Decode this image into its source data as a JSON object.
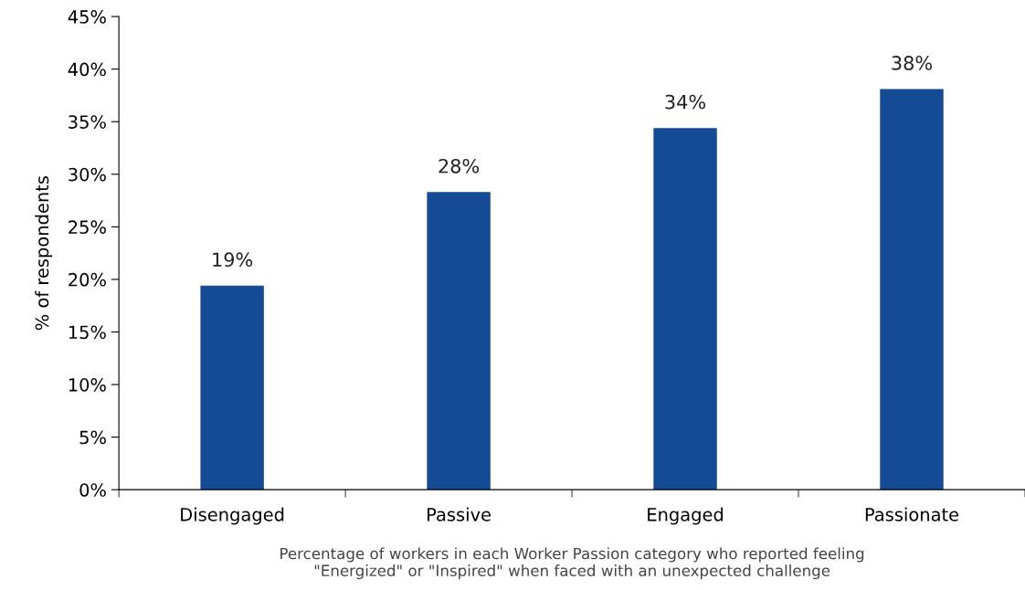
{
  "chart_data": {
    "type": "bar",
    "categories": [
      "Disengaged",
      "Passive",
      "Engaged",
      "Passionate"
    ],
    "values": [
      19.4,
      28.3,
      34.4,
      38.1
    ],
    "value_labels": [
      "19%",
      "28%",
      "34%",
      "38%"
    ],
    "color": "#154a94",
    "ylabel": "% of respondents",
    "xlabel": "Percentage of workers in each Worker Passion category who reported feeling\n\"Energized\" or \"Inspired\" when faced with an unexpected challenge",
    "ylim": [
      0,
      45
    ],
    "yticks": [
      {
        "value": 0,
        "label": "0%"
      },
      {
        "value": 5,
        "label": "5%"
      },
      {
        "value": 10,
        "label": "10%"
      },
      {
        "value": 15,
        "label": "15%"
      },
      {
        "value": 20,
        "label": "20%"
      },
      {
        "value": 25,
        "label": "25%"
      },
      {
        "value": 30,
        "label": "30%"
      },
      {
        "value": 35,
        "label": "35%"
      },
      {
        "value": 40,
        "label": "40%"
      },
      {
        "value": 45,
        "label": "45%"
      }
    ],
    "grid": false,
    "legend": false
  }
}
